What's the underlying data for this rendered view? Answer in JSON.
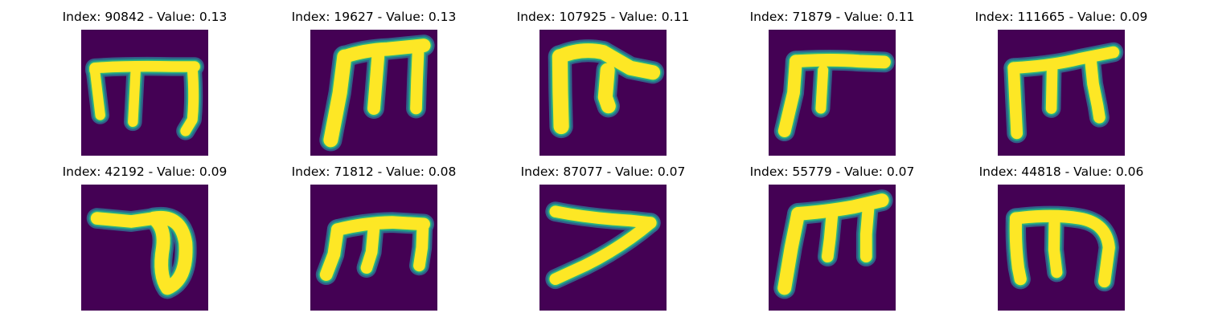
{
  "figure": {
    "colormap": {
      "background": "#440154",
      "edge_dark": "#31688e",
      "edge_mid": "#21918c",
      "edge_light": "#35b779",
      "stroke": "#fde725"
    },
    "panels": [
      {
        "title": "Index: 90842 - Value: 0.13",
        "glyph_icon": "handwritten-m-glyph"
      },
      {
        "title": "Index: 19627 - Value: 0.13",
        "glyph_icon": "handwritten-m-glyph"
      },
      {
        "title": "Index: 107925 - Value: 0.11",
        "glyph_icon": "handwritten-hook-glyph"
      },
      {
        "title": "Index: 71879 - Value: 0.11",
        "glyph_icon": "handwritten-flag-glyph"
      },
      {
        "title": "Index: 111665 - Value: 0.09",
        "glyph_icon": "handwritten-m-glyph"
      },
      {
        "title": "Index: 42192 - Value: 0.09",
        "glyph_icon": "handwritten-loop-glyph"
      },
      {
        "title": "Index: 71812 - Value: 0.08",
        "glyph_icon": "handwritten-m-glyph"
      },
      {
        "title": "Index: 87077 - Value: 0.07",
        "glyph_icon": "handwritten-seven-glyph"
      },
      {
        "title": "Index: 55779 - Value: 0.07",
        "glyph_icon": "handwritten-m-glyph"
      },
      {
        "title": "Index: 44818 - Value: 0.06",
        "glyph_icon": "handwritten-m-glyph"
      }
    ]
  }
}
